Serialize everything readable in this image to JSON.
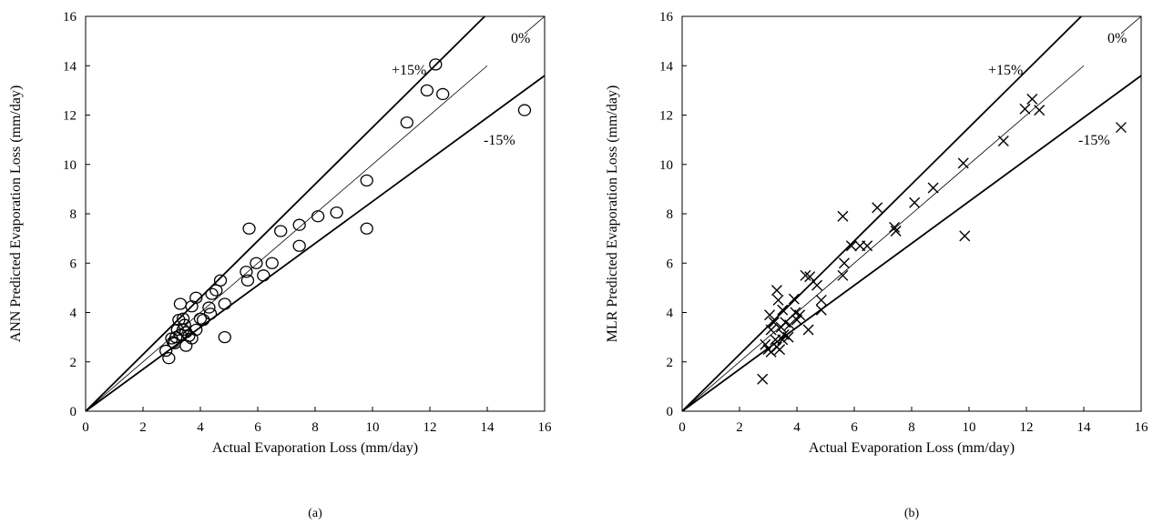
{
  "chart_data": [
    {
      "type": "scatter",
      "marker": "circle",
      "caption": "(a)",
      "xlabel": "Actual Evaporation Loss (mm/day)",
      "ylabel": "ANN Predicted Evaporation Loss (mm/day)",
      "xlim": [
        0,
        16
      ],
      "ylim": [
        0,
        16
      ],
      "xticks": [
        "0",
        "2",
        "4",
        "6",
        "8",
        "10",
        "12",
        "14",
        "16"
      ],
      "yticks": [
        "0",
        "2",
        "4",
        "6",
        "8",
        "10",
        "12",
        "14",
        "16"
      ],
      "grid": false,
      "reference_lines": [
        {
          "label": "+15%",
          "slope": 1.15
        },
        {
          "label": "0%",
          "slope": 1.0
        },
        {
          "label": "-15%",
          "slope": 0.85
        }
      ],
      "points": [
        [
          2.8,
          2.45
        ],
        [
          2.9,
          2.15
        ],
        [
          3.0,
          2.95
        ],
        [
          3.05,
          2.8
        ],
        [
          3.1,
          2.75
        ],
        [
          3.15,
          3.0
        ],
        [
          3.2,
          3.3
        ],
        [
          3.25,
          3.7
        ],
        [
          3.3,
          4.35
        ],
        [
          3.3,
          3.1
        ],
        [
          3.4,
          3.75
        ],
        [
          3.4,
          3.3
        ],
        [
          3.45,
          3.5
        ],
        [
          3.5,
          3.2
        ],
        [
          3.5,
          2.65
        ],
        [
          3.6,
          3.05
        ],
        [
          3.7,
          2.95
        ],
        [
          3.7,
          4.25
        ],
        [
          3.85,
          4.6
        ],
        [
          3.85,
          3.3
        ],
        [
          4.0,
          3.75
        ],
        [
          4.1,
          3.7
        ],
        [
          4.3,
          4.2
        ],
        [
          4.35,
          3.95
        ],
        [
          4.4,
          4.75
        ],
        [
          4.55,
          4.9
        ],
        [
          4.7,
          5.3
        ],
        [
          4.85,
          4.35
        ],
        [
          4.85,
          3.0
        ],
        [
          5.6,
          5.65
        ],
        [
          5.65,
          5.3
        ],
        [
          5.7,
          7.4
        ],
        [
          5.95,
          6.0
        ],
        [
          6.2,
          5.5
        ],
        [
          6.5,
          6.0
        ],
        [
          6.8,
          7.3
        ],
        [
          7.45,
          7.55
        ],
        [
          7.45,
          6.7
        ],
        [
          8.1,
          7.9
        ],
        [
          8.75,
          8.05
        ],
        [
          9.8,
          9.35
        ],
        [
          9.8,
          7.4
        ],
        [
          11.2,
          11.7
        ],
        [
          11.9,
          13.0
        ],
        [
          12.2,
          14.05
        ],
        [
          12.45,
          12.85
        ],
        [
          15.3,
          12.2
        ]
      ]
    },
    {
      "type": "scatter",
      "marker": "x",
      "caption": "(b)",
      "xlabel": "Actual Evaporation Loss (mm/day)",
      "ylabel": "MLR Predicted Evaporation Loss (mm/day)",
      "xlim": [
        0,
        16
      ],
      "ylim": [
        0,
        16
      ],
      "xticks": [
        "0",
        "2",
        "4",
        "6",
        "8",
        "10",
        "12",
        "14",
        "16"
      ],
      "yticks": [
        "0",
        "2",
        "4",
        "6",
        "8",
        "10",
        "12",
        "14",
        "16"
      ],
      "grid": false,
      "reference_lines": [
        {
          "label": "+15%",
          "slope": 1.15
        },
        {
          "label": "0%",
          "slope": 1.0
        },
        {
          "label": "-15%",
          "slope": 0.85
        }
      ],
      "points": [
        [
          2.8,
          1.3
        ],
        [
          2.9,
          2.7
        ],
        [
          3.0,
          2.5
        ],
        [
          3.05,
          3.9
        ],
        [
          3.1,
          3.3
        ],
        [
          3.1,
          2.4
        ],
        [
          3.2,
          3.6
        ],
        [
          3.25,
          2.9
        ],
        [
          3.3,
          4.9
        ],
        [
          3.3,
          2.6
        ],
        [
          3.35,
          4.5
        ],
        [
          3.4,
          2.5
        ],
        [
          3.45,
          3.4
        ],
        [
          3.5,
          4.1
        ],
        [
          3.5,
          2.9
        ],
        [
          3.55,
          3.1
        ],
        [
          3.6,
          3.6
        ],
        [
          3.7,
          3.0
        ],
        [
          3.75,
          3.5
        ],
        [
          3.9,
          4.55
        ],
        [
          3.95,
          4.0
        ],
        [
          4.0,
          3.7
        ],
        [
          4.1,
          3.9
        ],
        [
          4.3,
          5.5
        ],
        [
          4.4,
          3.3
        ],
        [
          4.45,
          5.45
        ],
        [
          4.7,
          5.1
        ],
        [
          4.85,
          4.5
        ],
        [
          4.85,
          4.1
        ],
        [
          5.6,
          7.9
        ],
        [
          5.6,
          5.5
        ],
        [
          5.65,
          6.0
        ],
        [
          5.9,
          6.7
        ],
        [
          6.2,
          6.7
        ],
        [
          6.45,
          6.7
        ],
        [
          6.8,
          8.25
        ],
        [
          7.4,
          7.45
        ],
        [
          7.45,
          7.3
        ],
        [
          8.1,
          8.45
        ],
        [
          8.75,
          9.05
        ],
        [
          9.8,
          10.05
        ],
        [
          9.85,
          7.1
        ],
        [
          11.2,
          10.95
        ],
        [
          11.95,
          12.25
        ],
        [
          12.2,
          12.65
        ],
        [
          12.45,
          12.2
        ],
        [
          15.3,
          11.5
        ]
      ]
    }
  ]
}
